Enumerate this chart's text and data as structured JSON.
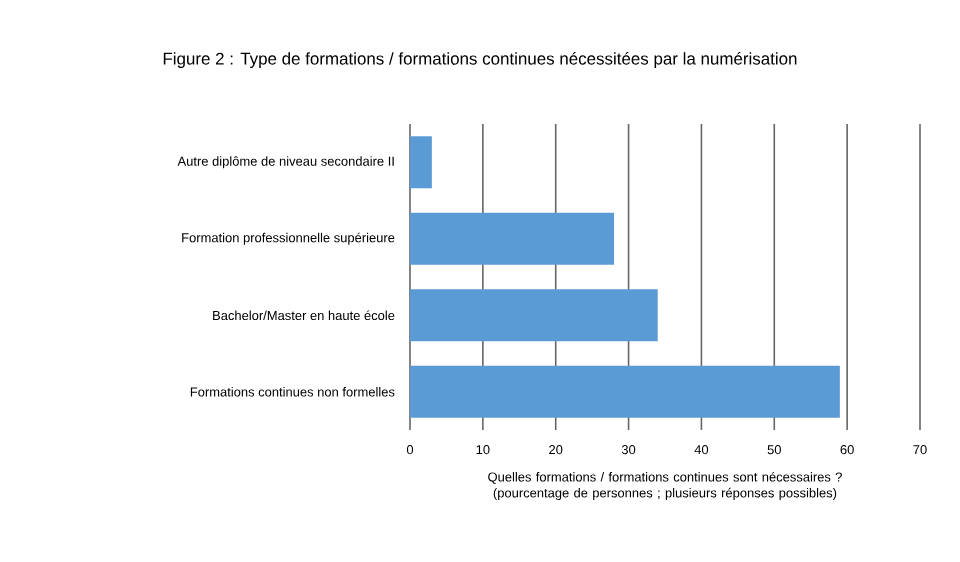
{
  "chart_data": {
    "type": "bar",
    "orientation": "horizontal",
    "title": "Figure 2 : Type de formations / formations continues nécessitées par la numérisation",
    "categories": [
      "Autre diplôme de niveau secondaire II",
      "Formation professionnelle supérieure",
      "Bachelor/Master en haute école",
      "Formations continues non formelles"
    ],
    "values": [
      3,
      28,
      34,
      59
    ],
    "color": "#5b9bd5",
    "xlim": [
      0,
      70
    ],
    "xticks": [
      0,
      10,
      20,
      30,
      40,
      50,
      60,
      70
    ],
    "grid": "x",
    "xlabel": "Quelles formations / formations continues sont nécessaires ? (pourcentage de personnes ; plusieurs réponses possibles)"
  }
}
